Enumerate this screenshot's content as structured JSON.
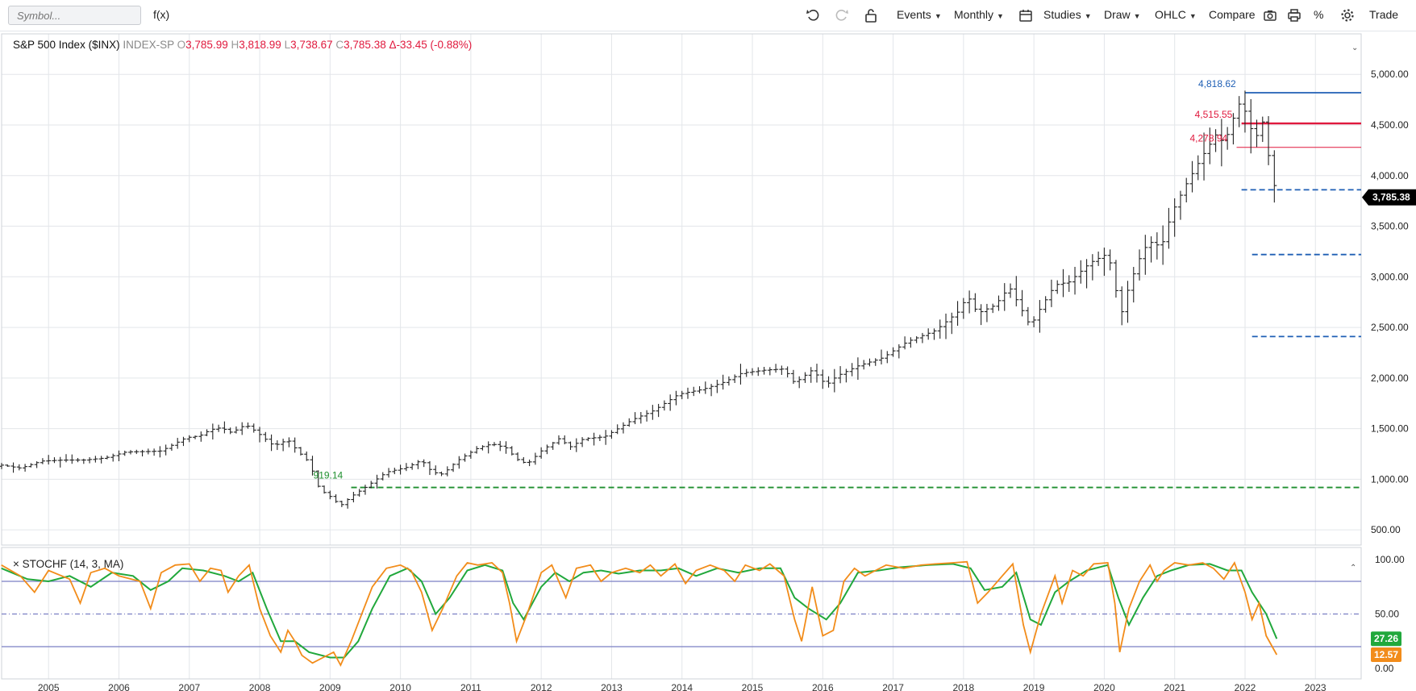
{
  "toolbar": {
    "symbol_placeholder": "Symbol...",
    "fx_label": "f(x)",
    "events_label": "Events",
    "period_label": "Monthly",
    "studies_label": "Studies",
    "draw_label": "Draw",
    "charttype_label": "OHLC",
    "compare_label": "Compare",
    "percent_label": "%",
    "trade_label": "Trade"
  },
  "legend": {
    "name": "S&P 500 Index ($INX)",
    "exchange": "INDEX-SP",
    "o_label": "O",
    "open": "3,785.99",
    "h_label": "H",
    "high": "3,818.99",
    "l_label": "L",
    "low": "3,738.67",
    "c_label": "C",
    "close": "3,785.38",
    "change": "Δ-33.45 (-0.88%)"
  },
  "stoch_legend": {
    "close_label": "×",
    "label": "STOCHF (14, 3, MA)"
  },
  "colors": {
    "bar": "#222222",
    "up_text": "#2a8a2a",
    "down_text": "#e0193d",
    "blue_line": "#1f5fb5",
    "red_line": "#e0193d",
    "green_dash": "#1f8f2f",
    "fast_k": "#f28c1a",
    "slow_d": "#21a83c",
    "band": "#7b7fc4",
    "price_tag_bg": "#000000",
    "grid": "#e3e6ea"
  },
  "chart_data": [
    {
      "type": "ohlc",
      "title": "S&P 500 Index ($INX)",
      "period": "Monthly",
      "x_ticks": [
        "2005",
        "2006",
        "2007",
        "2008",
        "2009",
        "2010",
        "2011",
        "2012",
        "2013",
        "2014",
        "2015",
        "2016",
        "2017",
        "2018",
        "2019",
        "2020",
        "2021",
        "2022",
        "2023"
      ],
      "y_ticks": [
        "5,000.00",
        "4,500.00",
        "4,000.00",
        "3,500.00",
        "3,000.00",
        "2,500.00",
        "2,000.00",
        "1,500.00",
        "1,000.00",
        "500.00"
      ],
      "y_tick_values": [
        5000,
        4500,
        4000,
        3500,
        3000,
        2500,
        2000,
        1500,
        1000,
        500
      ],
      "ylim": [
        350,
        5400
      ],
      "grid": true,
      "annotations": [
        {
          "label": "4,818.62",
          "value": 4818.62,
          "color": "#1f5fb5",
          "style": "solid",
          "from_year": 2022.0
        },
        {
          "label": "4,515.55",
          "value": 4515.55,
          "color": "#e0193d",
          "style": "solid-thick",
          "from_year": 2021.95
        },
        {
          "label": "4,278.94",
          "value": 4278.94,
          "color": "#e0193d",
          "style": "solid-thin",
          "from_year": 2021.88
        },
        {
          "label": "919.14",
          "value": 919.14,
          "color": "#1f8f2f",
          "style": "dashed",
          "from_year": 2009.3
        }
      ],
      "dashed_levels": [
        {
          "value": 3860,
          "from_year": 2021.95
        },
        {
          "value": 3220,
          "from_year": 2022.1
        },
        {
          "value": 2410,
          "from_year": 2022.1
        }
      ],
      "last_price": "3,785.38",
      "key_points": [
        {
          "t": 2004.33,
          "v": 1140
        },
        {
          "t": 2004.6,
          "v": 1110
        },
        {
          "t": 2004.9,
          "v": 1180
        },
        {
          "t": 2005.2,
          "v": 1190
        },
        {
          "t": 2005.5,
          "v": 1190
        },
        {
          "t": 2005.8,
          "v": 1210
        },
        {
          "t": 2006.1,
          "v": 1270
        },
        {
          "t": 2006.45,
          "v": 1275
        },
        {
          "t": 2006.6,
          "v": 1280
        },
        {
          "t": 2006.95,
          "v": 1410
        },
        {
          "t": 2007.15,
          "v": 1430
        },
        {
          "t": 2007.3,
          "v": 1490
        },
        {
          "t": 2007.45,
          "v": 1510
        },
        {
          "t": 2007.6,
          "v": 1460
        },
        {
          "t": 2007.8,
          "v": 1540
        },
        {
          "t": 2007.95,
          "v": 1470
        },
        {
          "t": 2008.2,
          "v": 1330
        },
        {
          "t": 2008.4,
          "v": 1390
        },
        {
          "t": 2008.55,
          "v": 1270
        },
        {
          "t": 2008.7,
          "v": 1170
        },
        {
          "t": 2008.85,
          "v": 900
        },
        {
          "t": 2009.0,
          "v": 830
        },
        {
          "t": 2009.15,
          "v": 740
        },
        {
          "t": 2009.3,
          "v": 830
        },
        {
          "t": 2009.5,
          "v": 920
        },
        {
          "t": 2009.8,
          "v": 1070
        },
        {
          "t": 2010.1,
          "v": 1120
        },
        {
          "t": 2010.3,
          "v": 1190
        },
        {
          "t": 2010.45,
          "v": 1070
        },
        {
          "t": 2010.6,
          "v": 1050
        },
        {
          "t": 2010.8,
          "v": 1180
        },
        {
          "t": 2011.1,
          "v": 1310
        },
        {
          "t": 2011.3,
          "v": 1350
        },
        {
          "t": 2011.5,
          "v": 1310
        },
        {
          "t": 2011.65,
          "v": 1200
        },
        {
          "t": 2011.8,
          "v": 1150
        },
        {
          "t": 2012.0,
          "v": 1280
        },
        {
          "t": 2012.25,
          "v": 1400
        },
        {
          "t": 2012.42,
          "v": 1320
        },
        {
          "t": 2012.6,
          "v": 1400
        },
        {
          "t": 2012.9,
          "v": 1420
        },
        {
          "t": 2013.3,
          "v": 1590
        },
        {
          "t": 2013.6,
          "v": 1680
        },
        {
          "t": 2013.95,
          "v": 1840
        },
        {
          "t": 2014.3,
          "v": 1890
        },
        {
          "t": 2014.6,
          "v": 1960
        },
        {
          "t": 2014.85,
          "v": 2050
        },
        {
          "t": 2015.2,
          "v": 2080
        },
        {
          "t": 2015.45,
          "v": 2090
        },
        {
          "t": 2015.6,
          "v": 1950
        },
        {
          "t": 2015.85,
          "v": 2080
        },
        {
          "t": 2016.05,
          "v": 1930
        },
        {
          "t": 2016.2,
          "v": 2020
        },
        {
          "t": 2016.5,
          "v": 2120
        },
        {
          "t": 2016.85,
          "v": 2200
        },
        {
          "t": 2017.2,
          "v": 2360
        },
        {
          "t": 2017.6,
          "v": 2470
        },
        {
          "t": 2017.95,
          "v": 2670
        },
        {
          "t": 2018.05,
          "v": 2820
        },
        {
          "t": 2018.2,
          "v": 2640
        },
        {
          "t": 2018.45,
          "v": 2720
        },
        {
          "t": 2018.65,
          "v": 2900
        },
        {
          "t": 2018.8,
          "v": 2710
        },
        {
          "t": 2018.95,
          "v": 2510
        },
        {
          "t": 2019.1,
          "v": 2700
        },
        {
          "t": 2019.3,
          "v": 2920
        },
        {
          "t": 2019.5,
          "v": 2950
        },
        {
          "t": 2019.8,
          "v": 3140
        },
        {
          "t": 2020.05,
          "v": 3230
        },
        {
          "t": 2020.15,
          "v": 2950
        },
        {
          "t": 2020.22,
          "v": 2580
        },
        {
          "t": 2020.35,
          "v": 2910
        },
        {
          "t": 2020.55,
          "v": 3270
        },
        {
          "t": 2020.7,
          "v": 3360
        },
        {
          "t": 2020.8,
          "v": 3270
        },
        {
          "t": 2020.95,
          "v": 3620
        },
        {
          "t": 2021.15,
          "v": 3900
        },
        {
          "t": 2021.4,
          "v": 4200
        },
        {
          "t": 2021.6,
          "v": 4420
        },
        {
          "t": 2021.7,
          "v": 4310
        },
        {
          "t": 2021.85,
          "v": 4600
        },
        {
          "t": 2021.95,
          "v": 4760
        },
        {
          "t": 2022.05,
          "v": 4510
        },
        {
          "t": 2022.15,
          "v": 4370
        },
        {
          "t": 2022.25,
          "v": 4530
        },
        {
          "t": 2022.35,
          "v": 4130
        },
        {
          "t": 2022.45,
          "v": 3785.38
        }
      ]
    },
    {
      "type": "line",
      "title": "STOCHF (14, 3, MA)",
      "ylim": [
        0,
        100
      ],
      "y_ticks": [
        "100.00",
        "50.00",
        "0.00"
      ],
      "y_tick_values": [
        100,
        50,
        0
      ],
      "bands": [
        80,
        50,
        20
      ],
      "last_values": {
        "fast_k": "12.57",
        "slow_d": "27.26"
      },
      "fast_k_points": [
        [
          2004.33,
          95
        ],
        [
          2004.6,
          85
        ],
        [
          2004.8,
          70
        ],
        [
          2005.0,
          90
        ],
        [
          2005.3,
          82
        ],
        [
          2005.45,
          60
        ],
        [
          2005.6,
          88
        ],
        [
          2005.8,
          92
        ],
        [
          2006.0,
          85
        ],
        [
          2006.3,
          80
        ],
        [
          2006.45,
          55
        ],
        [
          2006.6,
          88
        ],
        [
          2006.8,
          95
        ],
        [
          2007.0,
          96
        ],
        [
          2007.15,
          80
        ],
        [
          2007.3,
          92
        ],
        [
          2007.45,
          90
        ],
        [
          2007.55,
          70
        ],
        [
          2007.7,
          85
        ],
        [
          2007.85,
          95
        ],
        [
          2008.0,
          55
        ],
        [
          2008.15,
          30
        ],
        [
          2008.3,
          15
        ],
        [
          2008.4,
          35
        ],
        [
          2008.5,
          25
        ],
        [
          2008.6,
          12
        ],
        [
          2008.75,
          5
        ],
        [
          2008.9,
          10
        ],
        [
          2009.05,
          15
        ],
        [
          2009.15,
          3
        ],
        [
          2009.3,
          25
        ],
        [
          2009.45,
          50
        ],
        [
          2009.6,
          75
        ],
        [
          2009.8,
          92
        ],
        [
          2010.0,
          95
        ],
        [
          2010.15,
          90
        ],
        [
          2010.3,
          70
        ],
        [
          2010.45,
          35
        ],
        [
          2010.6,
          55
        ],
        [
          2010.8,
          85
        ],
        [
          2010.95,
          97
        ],
        [
          2011.1,
          95
        ],
        [
          2011.3,
          97
        ],
        [
          2011.45,
          88
        ],
        [
          2011.55,
          60
        ],
        [
          2011.65,
          25
        ],
        [
          2011.8,
          50
        ],
        [
          2012.0,
          88
        ],
        [
          2012.15,
          95
        ],
        [
          2012.35,
          65
        ],
        [
          2012.5,
          92
        ],
        [
          2012.7,
          95
        ],
        [
          2012.85,
          80
        ],
        [
          2013.0,
          88
        ],
        [
          2013.2,
          92
        ],
        [
          2013.4,
          88
        ],
        [
          2013.55,
          95
        ],
        [
          2013.7,
          85
        ],
        [
          2013.9,
          96
        ],
        [
          2014.05,
          78
        ],
        [
          2014.2,
          90
        ],
        [
          2014.4,
          95
        ],
        [
          2014.6,
          90
        ],
        [
          2014.75,
          80
        ],
        [
          2014.9,
          95
        ],
        [
          2015.1,
          90
        ],
        [
          2015.25,
          96
        ],
        [
          2015.45,
          85
        ],
        [
          2015.6,
          45
        ],
        [
          2015.7,
          25
        ],
        [
          2015.85,
          75
        ],
        [
          2016.0,
          30
        ],
        [
          2016.15,
          35
        ],
        [
          2016.3,
          80
        ],
        [
          2016.45,
          92
        ],
        [
          2016.6,
          85
        ],
        [
          2016.75,
          90
        ],
        [
          2016.9,
          95
        ],
        [
          2017.15,
          92
        ],
        [
          2017.4,
          95
        ],
        [
          2017.6,
          96
        ],
        [
          2017.85,
          97
        ],
        [
          2018.05,
          98
        ],
        [
          2018.2,
          60
        ],
        [
          2018.35,
          70
        ],
        [
          2018.55,
          85
        ],
        [
          2018.7,
          96
        ],
        [
          2018.85,
          40
        ],
        [
          2018.95,
          15
        ],
        [
          2019.1,
          50
        ],
        [
          2019.3,
          85
        ],
        [
          2019.4,
          60
        ],
        [
          2019.55,
          90
        ],
        [
          2019.7,
          85
        ],
        [
          2019.85,
          96
        ],
        [
          2020.05,
          97
        ],
        [
          2020.15,
          60
        ],
        [
          2020.22,
          15
        ],
        [
          2020.35,
          55
        ],
        [
          2020.5,
          80
        ],
        [
          2020.65,
          95
        ],
        [
          2020.75,
          80
        ],
        [
          2020.85,
          90
        ],
        [
          2021.0,
          97
        ],
        [
          2021.2,
          95
        ],
        [
          2021.4,
          97
        ],
        [
          2021.55,
          92
        ],
        [
          2021.7,
          82
        ],
        [
          2021.85,
          97
        ],
        [
          2022.0,
          70
        ],
        [
          2022.1,
          45
        ],
        [
          2022.2,
          60
        ],
        [
          2022.3,
          30
        ],
        [
          2022.45,
          12.57
        ]
      ],
      "slow_d_points": [
        [
          2004.33,
          92
        ],
        [
          2004.7,
          82
        ],
        [
          2005.0,
          80
        ],
        [
          2005.3,
          85
        ],
        [
          2005.6,
          75
        ],
        [
          2005.9,
          88
        ],
        [
          2006.2,
          85
        ],
        [
          2006.45,
          72
        ],
        [
          2006.7,
          80
        ],
        [
          2006.9,
          92
        ],
        [
          2007.2,
          90
        ],
        [
          2007.5,
          85
        ],
        [
          2007.7,
          80
        ],
        [
          2007.9,
          88
        ],
        [
          2008.1,
          55
        ],
        [
          2008.3,
          25
        ],
        [
          2008.5,
          25
        ],
        [
          2008.7,
          15
        ],
        [
          2009.0,
          10
        ],
        [
          2009.2,
          10
        ],
        [
          2009.4,
          25
        ],
        [
          2009.6,
          55
        ],
        [
          2009.85,
          85
        ],
        [
          2010.1,
          92
        ],
        [
          2010.3,
          80
        ],
        [
          2010.5,
          50
        ],
        [
          2010.7,
          65
        ],
        [
          2010.95,
          90
        ],
        [
          2011.2,
          95
        ],
        [
          2011.45,
          90
        ],
        [
          2011.6,
          60
        ],
        [
          2011.75,
          45
        ],
        [
          2012.0,
          75
        ],
        [
          2012.2,
          88
        ],
        [
          2012.4,
          80
        ],
        [
          2012.6,
          88
        ],
        [
          2012.85,
          90
        ],
        [
          2013.1,
          87
        ],
        [
          2013.4,
          90
        ],
        [
          2013.7,
          90
        ],
        [
          2013.95,
          92
        ],
        [
          2014.2,
          85
        ],
        [
          2014.5,
          92
        ],
        [
          2014.8,
          88
        ],
        [
          2015.1,
          92
        ],
        [
          2015.4,
          92
        ],
        [
          2015.6,
          65
        ],
        [
          2015.8,
          55
        ],
        [
          2016.05,
          45
        ],
        [
          2016.25,
          60
        ],
        [
          2016.5,
          88
        ],
        [
          2016.8,
          90
        ],
        [
          2017.1,
          93
        ],
        [
          2017.5,
          95
        ],
        [
          2017.85,
          96
        ],
        [
          2018.1,
          92
        ],
        [
          2018.3,
          72
        ],
        [
          2018.55,
          75
        ],
        [
          2018.75,
          88
        ],
        [
          2018.95,
          45
        ],
        [
          2019.1,
          40
        ],
        [
          2019.3,
          70
        ],
        [
          2019.5,
          80
        ],
        [
          2019.75,
          90
        ],
        [
          2020.05,
          95
        ],
        [
          2020.2,
          65
        ],
        [
          2020.35,
          40
        ],
        [
          2020.55,
          65
        ],
        [
          2020.75,
          85
        ],
        [
          2020.95,
          90
        ],
        [
          2021.2,
          95
        ],
        [
          2021.5,
          96
        ],
        [
          2021.75,
          90
        ],
        [
          2021.95,
          90
        ],
        [
          2022.1,
          70
        ],
        [
          2022.3,
          50
        ],
        [
          2022.45,
          27.26
        ]
      ]
    }
  ]
}
